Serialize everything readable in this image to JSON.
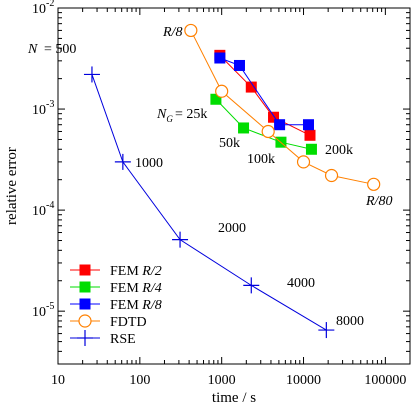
{
  "chart_data": {
    "type": "scatter",
    "xscale": "log",
    "yscale": "log",
    "xlim": [
      10,
      200000
    ],
    "ylim": [
      3e-06,
      0.01
    ],
    "xlabel": "time / s",
    "ylabel": "relative error",
    "x_ticks": [
      {
        "value": 10,
        "label": "10"
      },
      {
        "value": 100,
        "label": "100"
      },
      {
        "value": 1000,
        "label": "1000"
      },
      {
        "value": 10000,
        "label": "10000"
      },
      {
        "value": 100000,
        "label": "100000"
      }
    ],
    "y_ticks": [
      {
        "value": 1e-05,
        "base": "10",
        "exp": "-5"
      },
      {
        "value": 0.0001,
        "base": "10",
        "exp": "-4"
      },
      {
        "value": 0.001,
        "base": "10",
        "exp": "-3"
      },
      {
        "value": 0.01,
        "base": "10",
        "exp": "-2"
      }
    ],
    "legend_position": "bottom-left",
    "series": [
      {
        "name": "FEM R/2",
        "name_prefix": "FEM ",
        "name_italic": "R/2",
        "color": "#ff0000",
        "marker": "square",
        "points": [
          [
            950,
            0.0034
          ],
          [
            2300,
            0.00165
          ],
          [
            4300,
            0.00083
          ],
          [
            12000,
            0.00055
          ]
        ]
      },
      {
        "name": "FEM R/4",
        "name_prefix": "FEM ",
        "name_italic": "R/4",
        "color": "#00dd00",
        "marker": "square",
        "points": [
          [
            850,
            0.00125
          ],
          [
            1850,
            0.00065
          ],
          [
            5300,
            0.00047
          ],
          [
            12500,
            0.0004
          ]
        ]
      },
      {
        "name": "FEM R/8",
        "name_prefix": "FEM ",
        "name_italic": "R/8",
        "color": "#0000ff",
        "marker": "square",
        "points": [
          [
            950,
            0.0032
          ],
          [
            1650,
            0.0027
          ],
          [
            5100,
            0.0007
          ],
          [
            11500,
            0.0007
          ]
        ]
      },
      {
        "name": "FDTD",
        "name_prefix": "FDTD",
        "name_italic": "",
        "color": "#ff8000",
        "marker": "circle",
        "points": [
          [
            420,
            0.006
          ],
          [
            1000,
            0.0015
          ],
          [
            3700,
            0.0006
          ],
          [
            10000,
            0.0003
          ],
          [
            22000,
            0.00022
          ],
          [
            72000,
            0.00018
          ]
        ]
      },
      {
        "name": "RSE",
        "name_prefix": "RSE",
        "name_italic": "",
        "color": "#0000dd",
        "marker": "plus",
        "points": [
          [
            26,
            0.0022
          ],
          [
            62,
            0.0003
          ],
          [
            310,
            5.1e-05
          ],
          [
            2300,
            1.8e-05
          ],
          [
            19000,
            6.5e-06
          ]
        ]
      }
    ],
    "annotations": [
      {
        "text": "N = 500",
        "x": 26,
        "y": 0.0022
      },
      {
        "text": "1000",
        "x": 62,
        "y": 0.0003
      },
      {
        "text": "2000",
        "x": 310,
        "y": 5.1e-05
      },
      {
        "text": "4000",
        "x": 2300,
        "y": 1.8e-05
      },
      {
        "text": "8000",
        "x": 19000,
        "y": 6.5e-06
      },
      {
        "text": "R/8",
        "x": 420,
        "y": 0.006
      },
      {
        "text": "R/80",
        "x": 72000,
        "y": 0.00018
      },
      {
        "text": "N_G = 25k",
        "x": 850,
        "y": 0.00125
      },
      {
        "text": "50k",
        "x": 1850,
        "y": 0.00065
      },
      {
        "text": "100k",
        "x": 5300,
        "y": 0.00047
      },
      {
        "text": "200k",
        "x": 12500,
        "y": 0.0004
      }
    ]
  }
}
